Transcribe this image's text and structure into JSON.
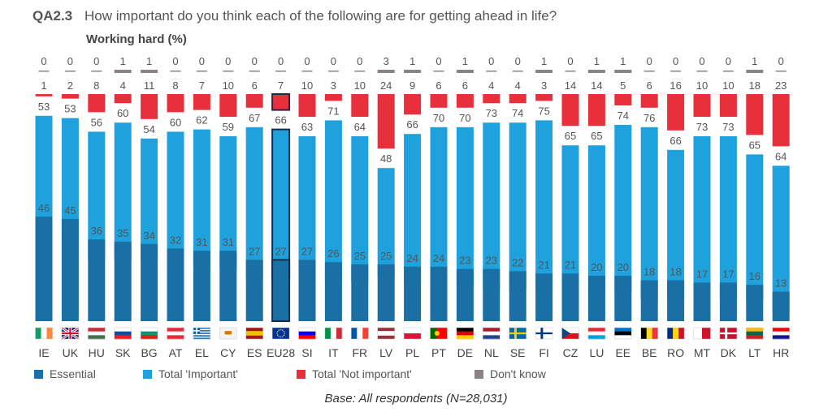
{
  "header": {
    "qid": "QA2.3",
    "question": "How important do you think each of the following are for getting ahead in life?",
    "subtitle": "Working hard  (%)"
  },
  "legend": {
    "essential": "Essential",
    "important": "Total 'Important'",
    "not_important": "Total 'Not important'",
    "dont_know": "Don't know"
  },
  "footer": {
    "base": "Base: All respondents (N=28,031)"
  },
  "colors": {
    "essential": "#1a6fa5",
    "important": "#1ea1dc",
    "not_important": "#e8303c",
    "dont_know": "#8a8384",
    "highlight_border": "#1b2a4a"
  },
  "chart_data": {
    "type": "bar",
    "stacked": true,
    "highlight_category": "EU28",
    "categories": [
      "IE",
      "UK",
      "HU",
      "SK",
      "BG",
      "AT",
      "EL",
      "CY",
      "ES",
      "EU28",
      "SI",
      "IT",
      "FR",
      "LV",
      "PL",
      "PT",
      "DE",
      "NL",
      "SE",
      "FI",
      "CZ",
      "LU",
      "EE",
      "BE",
      "RO",
      "MT",
      "DK",
      "LT",
      "HR"
    ],
    "series": [
      {
        "name": "Essential",
        "values": [
          46,
          45,
          36,
          35,
          34,
          32,
          31,
          31,
          27,
          27,
          27,
          26,
          25,
          25,
          24,
          24,
          23,
          23,
          22,
          21,
          21,
          20,
          20,
          18,
          18,
          17,
          17,
          16,
          13
        ]
      },
      {
        "name": "Total 'Important'",
        "values": [
          53,
          53,
          56,
          60,
          54,
          60,
          62,
          59,
          67,
          66,
          63,
          71,
          64,
          48,
          66,
          70,
          70,
          73,
          74,
          75,
          65,
          65,
          74,
          76,
          66,
          73,
          73,
          65,
          64
        ]
      },
      {
        "name": "Total 'Not important'",
        "values": [
          1,
          2,
          8,
          4,
          11,
          8,
          7,
          10,
          6,
          7,
          10,
          3,
          10,
          24,
          9,
          6,
          6,
          4,
          4,
          3,
          14,
          14,
          5,
          6,
          16,
          10,
          10,
          18,
          23
        ]
      },
      {
        "name": "Don't know",
        "values": [
          0,
          0,
          0,
          1,
          1,
          0,
          0,
          0,
          0,
          0,
          0,
          0,
          0,
          3,
          1,
          0,
          1,
          0,
          0,
          1,
          0,
          1,
          1,
          0,
          0,
          0,
          0,
          1,
          0
        ]
      }
    ],
    "ylim": [
      0,
      100
    ]
  },
  "flags": {
    "IE": {
      "type": "v",
      "colors": [
        "#169b62",
        "#ffffff",
        "#ff883e"
      ]
    },
    "UK": {
      "type": "uk",
      "colors": [
        "#012169",
        "#ffffff",
        "#c8102e"
      ]
    },
    "HU": {
      "type": "h",
      "colors": [
        "#ce2939",
        "#ffffff",
        "#477050"
      ]
    },
    "SK": {
      "type": "h",
      "colors": [
        "#ffffff",
        "#0b4ea2",
        "#ee1c25"
      ]
    },
    "BG": {
      "type": "h",
      "colors": [
        "#ffffff",
        "#00966e",
        "#d62612"
      ]
    },
    "AT": {
      "type": "h",
      "colors": [
        "#ed2939",
        "#ffffff",
        "#ed2939"
      ]
    },
    "EL": {
      "type": "stripes",
      "colors": [
        "#0d5eaf",
        "#ffffff"
      ]
    },
    "CY": {
      "type": "plain",
      "colors": [
        "#f4f4f4",
        "#d57800"
      ]
    },
    "ES": {
      "type": "h3",
      "colors": [
        "#aa151b",
        "#f1bf00",
        "#aa151b"
      ]
    },
    "EU28": {
      "type": "eu",
      "colors": [
        "#003399",
        "#ffcc00"
      ]
    },
    "SI": {
      "type": "h",
      "colors": [
        "#ffffff",
        "#0000ff",
        "#ff0000"
      ]
    },
    "IT": {
      "type": "v",
      "colors": [
        "#009246",
        "#ffffff",
        "#ce2b37"
      ]
    },
    "FR": {
      "type": "v",
      "colors": [
        "#0055a4",
        "#ffffff",
        "#ef4135"
      ]
    },
    "LV": {
      "type": "h3",
      "colors": [
        "#9e3039",
        "#ffffff",
        "#9e3039"
      ]
    },
    "PL": {
      "type": "h2",
      "colors": [
        "#ffffff",
        "#dc143c"
      ]
    },
    "PT": {
      "type": "pt",
      "colors": [
        "#006600",
        "#ff0000"
      ]
    },
    "DE": {
      "type": "h",
      "colors": [
        "#000000",
        "#dd0000",
        "#ffce00"
      ]
    },
    "NL": {
      "type": "h",
      "colors": [
        "#ae1c28",
        "#ffffff",
        "#21468b"
      ]
    },
    "SE": {
      "type": "nordic",
      "colors": [
        "#006aa7",
        "#fecc00"
      ]
    },
    "FI": {
      "type": "nordic",
      "colors": [
        "#ffffff",
        "#003580"
      ]
    },
    "CZ": {
      "type": "cz",
      "colors": [
        "#ffffff",
        "#d7141a",
        "#11457e"
      ]
    },
    "LU": {
      "type": "h",
      "colors": [
        "#ed2939",
        "#ffffff",
        "#00a1de"
      ]
    },
    "EE": {
      "type": "h",
      "colors": [
        "#0072ce",
        "#000000",
        "#ffffff"
      ]
    },
    "BE": {
      "type": "v",
      "colors": [
        "#000000",
        "#fdda24",
        "#ef3340"
      ]
    },
    "RO": {
      "type": "v",
      "colors": [
        "#002b7f",
        "#fcd116",
        "#ce1126"
      ]
    },
    "MT": {
      "type": "vh",
      "colors": [
        "#ffffff",
        "#cf142b"
      ]
    },
    "DK": {
      "type": "nordic",
      "colors": [
        "#c8102e",
        "#ffffff"
      ]
    },
    "LT": {
      "type": "h",
      "colors": [
        "#fdb913",
        "#006a44",
        "#c1272d"
      ]
    },
    "HR": {
      "type": "h",
      "colors": [
        "#ff0000",
        "#ffffff",
        "#171796"
      ]
    }
  }
}
